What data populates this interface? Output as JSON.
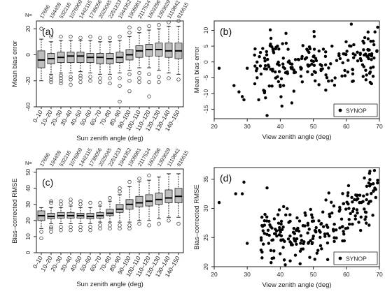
{
  "chart_data": [
    {
      "panel": "(a)",
      "type": "boxplot",
      "n_prefix": "N=",
      "counts": [
        "17686",
        "194459",
        "532216",
        "1076909",
        "1442115",
        "1738056",
        "2025045",
        "2251233",
        "1944352",
        "1908981",
        "2117524",
        "1602296",
        "1393629",
        "1119842",
        "816615"
      ],
      "categories": [
        "0–10",
        "10–20",
        "20–30",
        "30–40",
        "40–50",
        "50–60",
        "60–70",
        "70–80",
        "80–90",
        "90–100",
        "100–110",
        "110–120",
        "120–130",
        "130–140",
        "140–150"
      ],
      "xlabel": "Sun zenith angle (deg)",
      "ylabel": "Mean bias error",
      "ylim": [
        -40,
        26
      ],
      "yticks": [
        -40,
        -20,
        0,
        20
      ],
      "boxes": [
        {
          "min": -20,
          "q1": -10,
          "median": -4,
          "q3": 3,
          "max": 12,
          "outliers": [
            20
          ]
        },
        {
          "min": -15,
          "q1": -7,
          "median": -3,
          "q3": 1,
          "max": 10,
          "outliers": [
            -17,
            -19,
            -21,
            14
          ]
        },
        {
          "min": -14,
          "q1": -6,
          "median": -2,
          "q3": 2,
          "max": 11,
          "outliers": [
            -16,
            -18,
            -20,
            -22,
            14
          ]
        },
        {
          "min": -14,
          "q1": -6,
          "median": -1,
          "q3": 2,
          "max": 11,
          "outliers": [
            -17,
            -19,
            -23,
            14
          ]
        },
        {
          "min": -13,
          "q1": -6,
          "median": -1,
          "q3": 2,
          "max": 11,
          "outliers": [
            -16,
            -18,
            -21,
            13
          ]
        },
        {
          "min": -14,
          "q1": -6,
          "median": -2,
          "q3": 1,
          "max": 11,
          "outliers": [
            -17,
            -20,
            14
          ]
        },
        {
          "min": -15,
          "q1": -7,
          "median": -2,
          "q3": 1,
          "max": 10,
          "outliers": [
            -18,
            -21,
            13
          ]
        },
        {
          "min": -15,
          "q1": -7,
          "median": -3,
          "q3": 1,
          "max": 10,
          "outliers": [
            -18,
            -22,
            13
          ]
        },
        {
          "min": -14,
          "q1": -6,
          "median": -2,
          "q3": 2,
          "max": 11,
          "outliers": [
            -18,
            -24,
            -36,
            14
          ]
        },
        {
          "min": -12,
          "q1": -4,
          "median": 0,
          "q3": 4,
          "max": 14,
          "outliers": [
            -15,
            -20,
            -28,
            17,
            21
          ]
        },
        {
          "min": -10,
          "q1": -2,
          "median": 3,
          "q3": 7,
          "max": 17,
          "outliers": [
            -14,
            -18,
            -21,
            20
          ]
        },
        {
          "min": -10,
          "q1": -1,
          "median": 4,
          "q3": 8,
          "max": 19,
          "outliers": [
            -15,
            -21,
            -32,
            22
          ]
        },
        {
          "min": -12,
          "q1": -1,
          "median": 4,
          "q3": 9,
          "max": 20,
          "outliers": [
            -17,
            -21,
            23
          ]
        },
        {
          "min": -14,
          "q1": -2,
          "median": 3,
          "q3": 9,
          "max": 22,
          "outliers": [
            -18,
            25
          ]
        },
        {
          "min": -15,
          "q1": -3,
          "median": 3,
          "q3": 9,
          "max": 22,
          "outliers": [
            -19,
            26
          ]
        }
      ]
    },
    {
      "panel": "(b)",
      "type": "scatter",
      "xlabel": "View zenith angle (deg)",
      "ylabel": "Mean bias error",
      "xlim": [
        20,
        70
      ],
      "ylim": [
        -18,
        13
      ],
      "xticks": [
        20,
        30,
        40,
        50,
        60,
        70
      ],
      "yticks": [
        -15,
        -10,
        -5,
        0,
        5,
        10
      ],
      "legend": "SYNOP",
      "legend_position": "bottom-right"
    },
    {
      "panel": "(c)",
      "type": "boxplot",
      "n_prefix": "N=",
      "counts": [
        "17686",
        "194459",
        "532216",
        "1076909",
        "1442115",
        "1738056",
        "2025045",
        "2251233",
        "1944352",
        "1908981",
        "2117524",
        "1602296",
        "1393629",
        "1119842",
        "816615"
      ],
      "categories": [
        "0–10",
        "10–20",
        "20–30",
        "30–40",
        "40–50",
        "50–60",
        "60–70",
        "70–80",
        "80–90",
        "90–100",
        "100–110",
        "110–120",
        "120–130",
        "130–140",
        "140–150"
      ],
      "xlabel": "Sun zenith angle (deg)",
      "ylabel": "Bias–corrected RMSE",
      "ylim": [
        0,
        52
      ],
      "yticks": [
        0,
        10,
        20,
        30,
        40,
        50
      ],
      "boxes": [
        {
          "min": 15,
          "q1": 20,
          "median": 23,
          "q3": 26,
          "max": 28,
          "outliers": [
            13,
            9
          ]
        },
        {
          "min": 18,
          "q1": 21,
          "median": 22.5,
          "q3": 24.5,
          "max": 28,
          "outliers": [
            16,
            15,
            13,
            31,
            32
          ]
        },
        {
          "min": 18,
          "q1": 21.5,
          "median": 23,
          "q3": 25,
          "max": 28,
          "outliers": [
            16,
            14,
            30,
            32
          ]
        },
        {
          "min": 18,
          "q1": 21.5,
          "median": 23,
          "q3": 25,
          "max": 29,
          "outliers": [
            16,
            14,
            31,
            33
          ]
        },
        {
          "min": 18,
          "q1": 21.5,
          "median": 23,
          "q3": 24.5,
          "max": 28,
          "outliers": [
            16,
            14,
            30,
            32
          ]
        },
        {
          "min": 18,
          "q1": 21,
          "median": 22.5,
          "q3": 24.5,
          "max": 28,
          "outliers": [
            16,
            14,
            31
          ]
        },
        {
          "min": 19,
          "q1": 21.5,
          "median": 23,
          "q3": 25,
          "max": 29,
          "outliers": [
            17,
            15,
            31
          ]
        },
        {
          "min": 19,
          "q1": 23,
          "median": 24.5,
          "q3": 27,
          "max": 32,
          "outliers": [
            17,
            15,
            34
          ]
        },
        {
          "min": 19,
          "q1": 25,
          "median": 27,
          "q3": 30,
          "max": 36,
          "outliers": [
            17,
            15,
            38,
            40
          ]
        },
        {
          "min": 19,
          "q1": 27,
          "median": 30,
          "q3": 33,
          "max": 41,
          "outliers": [
            17,
            15,
            44
          ]
        },
        {
          "min": 20,
          "q1": 28.5,
          "median": 31,
          "q3": 35,
          "max": 44,
          "outliers": [
            18,
            46
          ]
        },
        {
          "min": 20,
          "q1": 29,
          "median": 32,
          "q3": 36,
          "max": 45,
          "outliers": [
            17,
            48
          ]
        },
        {
          "min": 21,
          "q1": 30,
          "median": 33,
          "q3": 37,
          "max": 47,
          "outliers": [
            18
          ]
        },
        {
          "min": 22,
          "q1": 31,
          "median": 34,
          "q3": 39,
          "max": 49,
          "outliers": [
            20
          ]
        },
        {
          "min": 22,
          "q1": 31,
          "median": 35,
          "q3": 40,
          "max": 49,
          "outliers": [
            18
          ]
        }
      ]
    },
    {
      "panel": "(d)",
      "type": "scatter",
      "xlabel": "View zenith angle (deg)",
      "ylabel": "Bias–corrected RMSE",
      "xlim": [
        20,
        70
      ],
      "ylim": [
        20,
        37
      ],
      "xticks": [
        20,
        30,
        40,
        50,
        60,
        70
      ],
      "yticks": [
        20,
        25,
        30,
        35
      ],
      "legend": "SYNOP",
      "legend_position": "bottom-right"
    }
  ]
}
